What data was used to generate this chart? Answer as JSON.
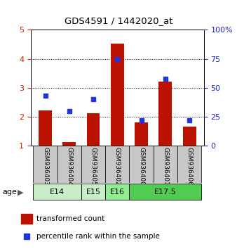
{
  "title": "GDS4591 / 1442020_at",
  "samples": [
    "GSM936403",
    "GSM936404",
    "GSM936405",
    "GSM936402",
    "GSM936400",
    "GSM936401",
    "GSM936406"
  ],
  "red_values": [
    2.22,
    1.12,
    2.12,
    4.52,
    1.8,
    3.22,
    1.65
  ],
  "blue_values_pct": [
    43,
    30,
    40,
    75,
    22,
    58,
    22
  ],
  "ylim_left": [
    1,
    5
  ],
  "ylim_right": [
    0,
    100
  ],
  "yticks_left": [
    1,
    2,
    3,
    4,
    5
  ],
  "yticks_right": [
    0,
    25,
    50,
    75,
    100
  ],
  "ytick_labels_right": [
    "0",
    "25",
    "50",
    "75",
    "100%"
  ],
  "ytick_labels_left": [
    "1",
    "2",
    "3",
    "4",
    "5"
  ],
  "age_groups": [
    {
      "label": "E14",
      "indices": [
        0,
        1
      ],
      "color": "#c8eec8"
    },
    {
      "label": "E15",
      "indices": [
        2
      ],
      "color": "#c8eec8"
    },
    {
      "label": "E16",
      "indices": [
        3
      ],
      "color": "#90ee90"
    },
    {
      "label": "E17.5",
      "indices": [
        4,
        5,
        6
      ],
      "color": "#50cc50"
    }
  ],
  "bar_color": "#bb1100",
  "blue_color": "#2233dd",
  "bar_width": 0.55,
  "blue_marker_size": 5,
  "bg_color": "#c8c8c8",
  "plot_bg": "#ffffff",
  "age_label": "age",
  "legend_red": "transformed count",
  "legend_blue": "percentile rank within the sample",
  "left_color": "#cc2200",
  "right_color": "#2222cc"
}
